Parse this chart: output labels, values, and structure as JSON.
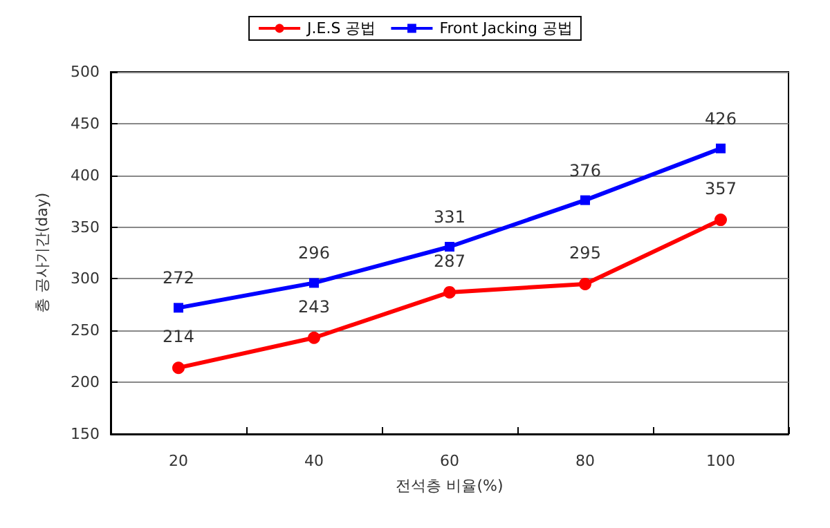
{
  "chart_data": {
    "type": "line",
    "xlabel": "전석층 비율(%)",
    "ylabel": "총 공사기간(day)",
    "categories": [
      "20",
      "40",
      "60",
      "80",
      "100"
    ],
    "series": [
      {
        "name": "J.E.S 공법",
        "color": "#ff0000",
        "marker": "circle",
        "values": [
          214,
          243,
          287,
          295,
          357
        ]
      },
      {
        "name": "Front Jacking 공법",
        "color": "#0000ff",
        "marker": "square",
        "values": [
          272,
          296,
          331,
          376,
          426
        ]
      }
    ],
    "ylim": [
      150,
      500
    ],
    "yticks": [
      150,
      200,
      250,
      300,
      350,
      400,
      450,
      500
    ],
    "grid": "y",
    "legend": "top",
    "data_labels": true
  }
}
